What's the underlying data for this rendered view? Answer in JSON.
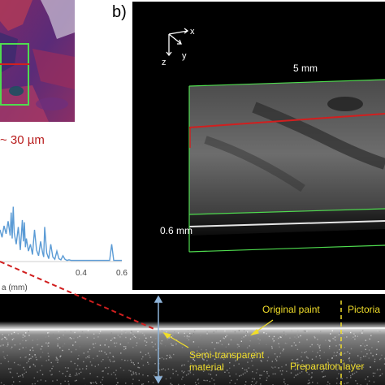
{
  "panel_b": {
    "label": "b)",
    "axes": {
      "x": "x",
      "y": "y",
      "z": "z"
    },
    "width_label": "5 mm",
    "depth_label": "0.6 mm"
  },
  "line_profile": {
    "feature_label": "~ 30 µm",
    "xlabel": "a (mm)",
    "chart_data": {
      "type": "line",
      "x_ticks": [
        "0.4",
        "0.6"
      ],
      "xlim": [
        0,
        0.6
      ],
      "series": [
        {
          "x": [
            0.0,
            0.01,
            0.02,
            0.03,
            0.04,
            0.05,
            0.055,
            0.06,
            0.065,
            0.07,
            0.08,
            0.09,
            0.1,
            0.11,
            0.115,
            0.12,
            0.125,
            0.13,
            0.14,
            0.15,
            0.16,
            0.17,
            0.18,
            0.19,
            0.2,
            0.21,
            0.215,
            0.22,
            0.23,
            0.24,
            0.25,
            0.26,
            0.27,
            0.28,
            0.29,
            0.3,
            0.31,
            0.32,
            0.33,
            0.34,
            0.35,
            0.36,
            0.37,
            0.38,
            0.4,
            0.41,
            0.42,
            0.43,
            0.44,
            0.45,
            0.46,
            0.47,
            0.48,
            0.49,
            0.5,
            0.51,
            0.52,
            0.53,
            0.54,
            0.55,
            0.56,
            0.57,
            0.58,
            0.6
          ],
          "y": [
            0.55,
            0.42,
            0.62,
            0.48,
            0.7,
            0.45,
            0.85,
            0.4,
            0.95,
            0.5,
            0.3,
            0.6,
            0.2,
            0.72,
            0.35,
            0.68,
            0.25,
            0.4,
            0.18,
            0.3,
            0.12,
            0.55,
            0.2,
            0.1,
            0.35,
            0.15,
            0.08,
            0.6,
            0.15,
            0.05,
            0.3,
            0.08,
            0.04,
            0.18,
            0.05,
            0.03,
            0.1,
            0.04,
            0.02,
            0.03,
            0.02,
            0.02,
            0.02,
            0.02,
            0.02,
            0.02,
            0.02,
            0.02,
            0.02,
            0.02,
            0.02,
            0.02,
            0.02,
            0.02,
            0.02,
            0.02,
            0.02,
            0.02,
            0.02,
            0.3,
            0.02,
            0.02,
            0.02,
            0.02
          ]
        }
      ]
    }
  },
  "bscan": {
    "annotations": {
      "original_paint": "Original paint",
      "pictorial": "Pictoria",
      "semi_transparent_1": "Semi-transparent",
      "semi_transparent_2": "material",
      "preparation_layer": "Preparation layer"
    }
  },
  "colors": {
    "highlight_green": "#4fdc4f",
    "marker_red": "#d11f1f",
    "profile_blue": "#5b9bd5",
    "annotation_yellow": "#f1de2a",
    "depth_arrow": "#8fb4d9"
  }
}
